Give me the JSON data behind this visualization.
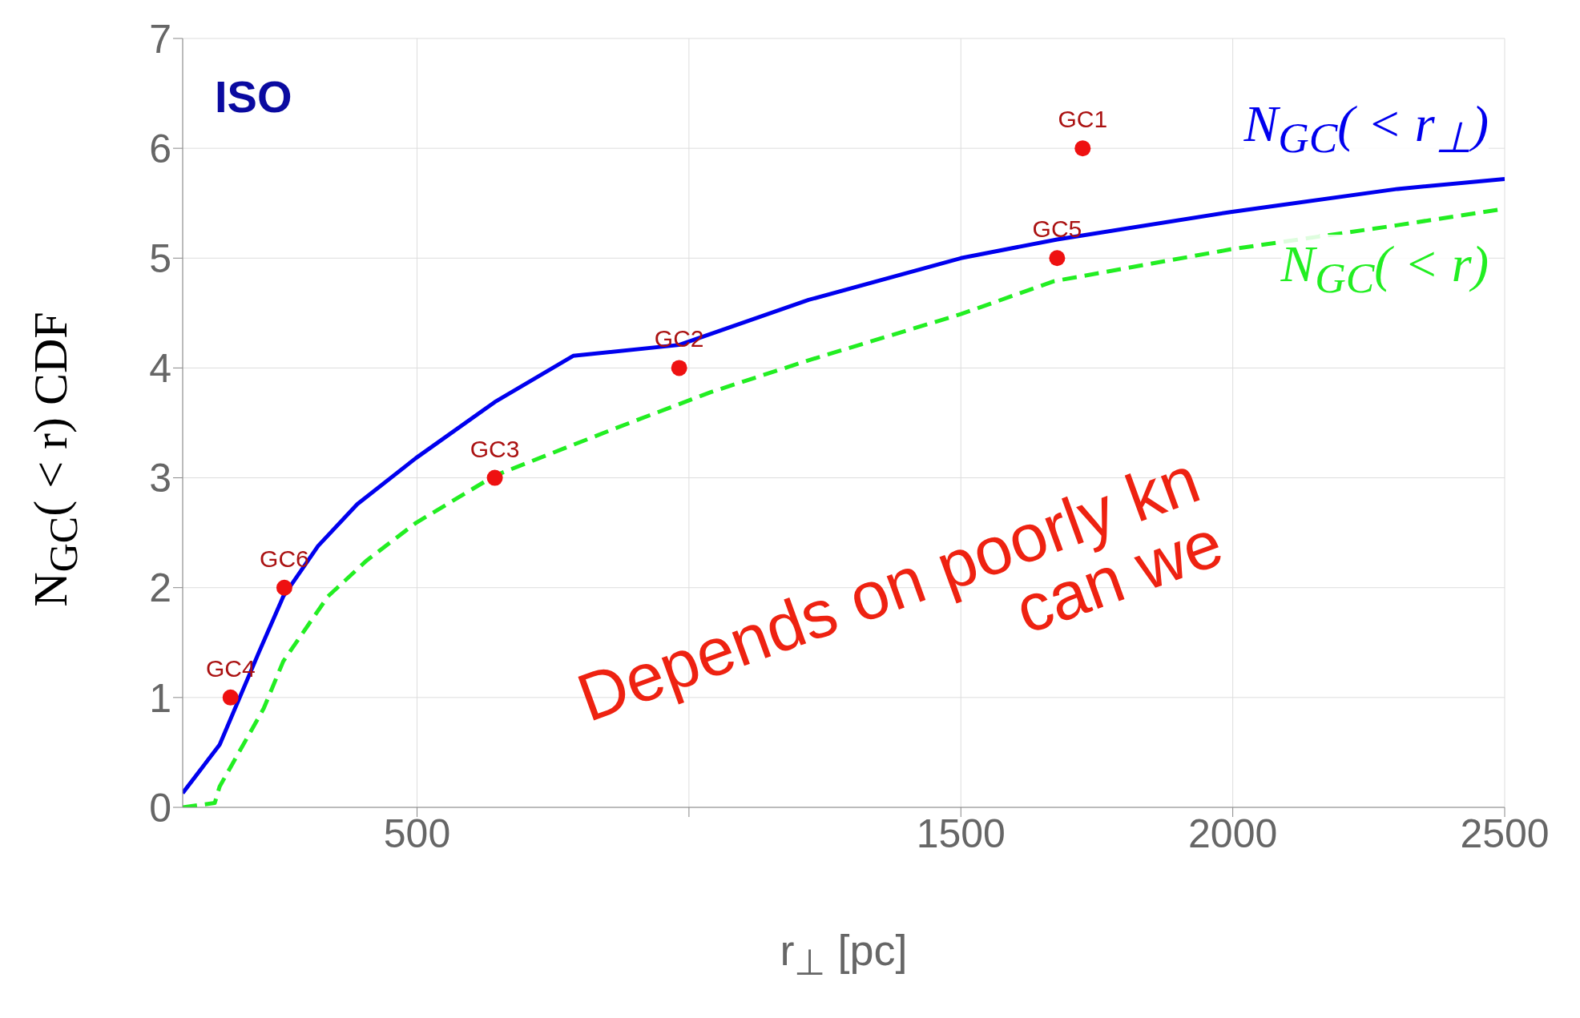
{
  "chart_data": {
    "type": "line",
    "xlabel": "r$_{⊥}$ [pc]",
    "ylabel": "N$_{GC}$( < r)  CDF",
    "xlim": [
      69,
      2500
    ],
    "ylim": [
      0,
      7
    ],
    "xticks": [
      500,
      {
        "value": 1000,
        "label": null
      },
      1500,
      2000,
      2500
    ],
    "yticks": [
      0,
      1,
      2,
      3,
      4,
      5,
      6,
      7
    ],
    "grid": true,
    "legend": "top right",
    "series": [
      {
        "name": "N$_{GC}$( < r$_{⊥}$)",
        "color": "#0000ee",
        "line_style": "solid",
        "marker": "none",
        "x": [
          69,
          137,
          209,
          254,
          318,
          390,
          498,
          643,
          787,
          982,
          1220,
          1500,
          1677,
          1996,
          2303,
          2500
        ],
        "values": [
          0.13,
          0.57,
          1.41,
          1.92,
          2.38,
          2.76,
          3.18,
          3.69,
          4.11,
          4.21,
          4.62,
          5.0,
          5.17,
          5.42,
          5.63,
          5.72
        ]
      },
      {
        "name": "N$_{GC}$( < r)",
        "color": "#22ee22",
        "line_style": "dashed",
        "marker": "none",
        "x": [
          69,
          128,
          137,
          218,
          254,
          336,
          408,
          498,
          643,
          859,
          1040,
          1220,
          1500,
          1671,
          1996,
          2303,
          2500
        ],
        "values": [
          0,
          0.04,
          0.19,
          0.9,
          1.33,
          1.92,
          2.25,
          2.59,
          3.02,
          3.44,
          3.78,
          4.07,
          4.49,
          4.79,
          5.08,
          5.3,
          5.45
        ]
      },
      {
        "type": "scatter",
        "color": "#ee1111",
        "marker": "circle",
        "x": [
          157,
          256,
          643,
          982,
          1677,
          1724
        ],
        "values": [
          1,
          2,
          3,
          4,
          5,
          6
        ]
      }
    ],
    "annotations": [
      "ISO",
      {
        "text": "GC4",
        "x": 157,
        "y": 1
      },
      {
        "text": "GC6",
        "x": 256,
        "y": 2
      },
      {
        "text": "GC3",
        "x": 643,
        "y": 3
      },
      {
        "text": "GC2",
        "x": 982,
        "y": 4
      },
      {
        "text": "GC5",
        "x": 1677,
        "y": 5
      },
      {
        "text": "GC1",
        "x": 1724,
        "y": 6
      },
      "Depends on poorly kn",
      "can we"
    ]
  }
}
